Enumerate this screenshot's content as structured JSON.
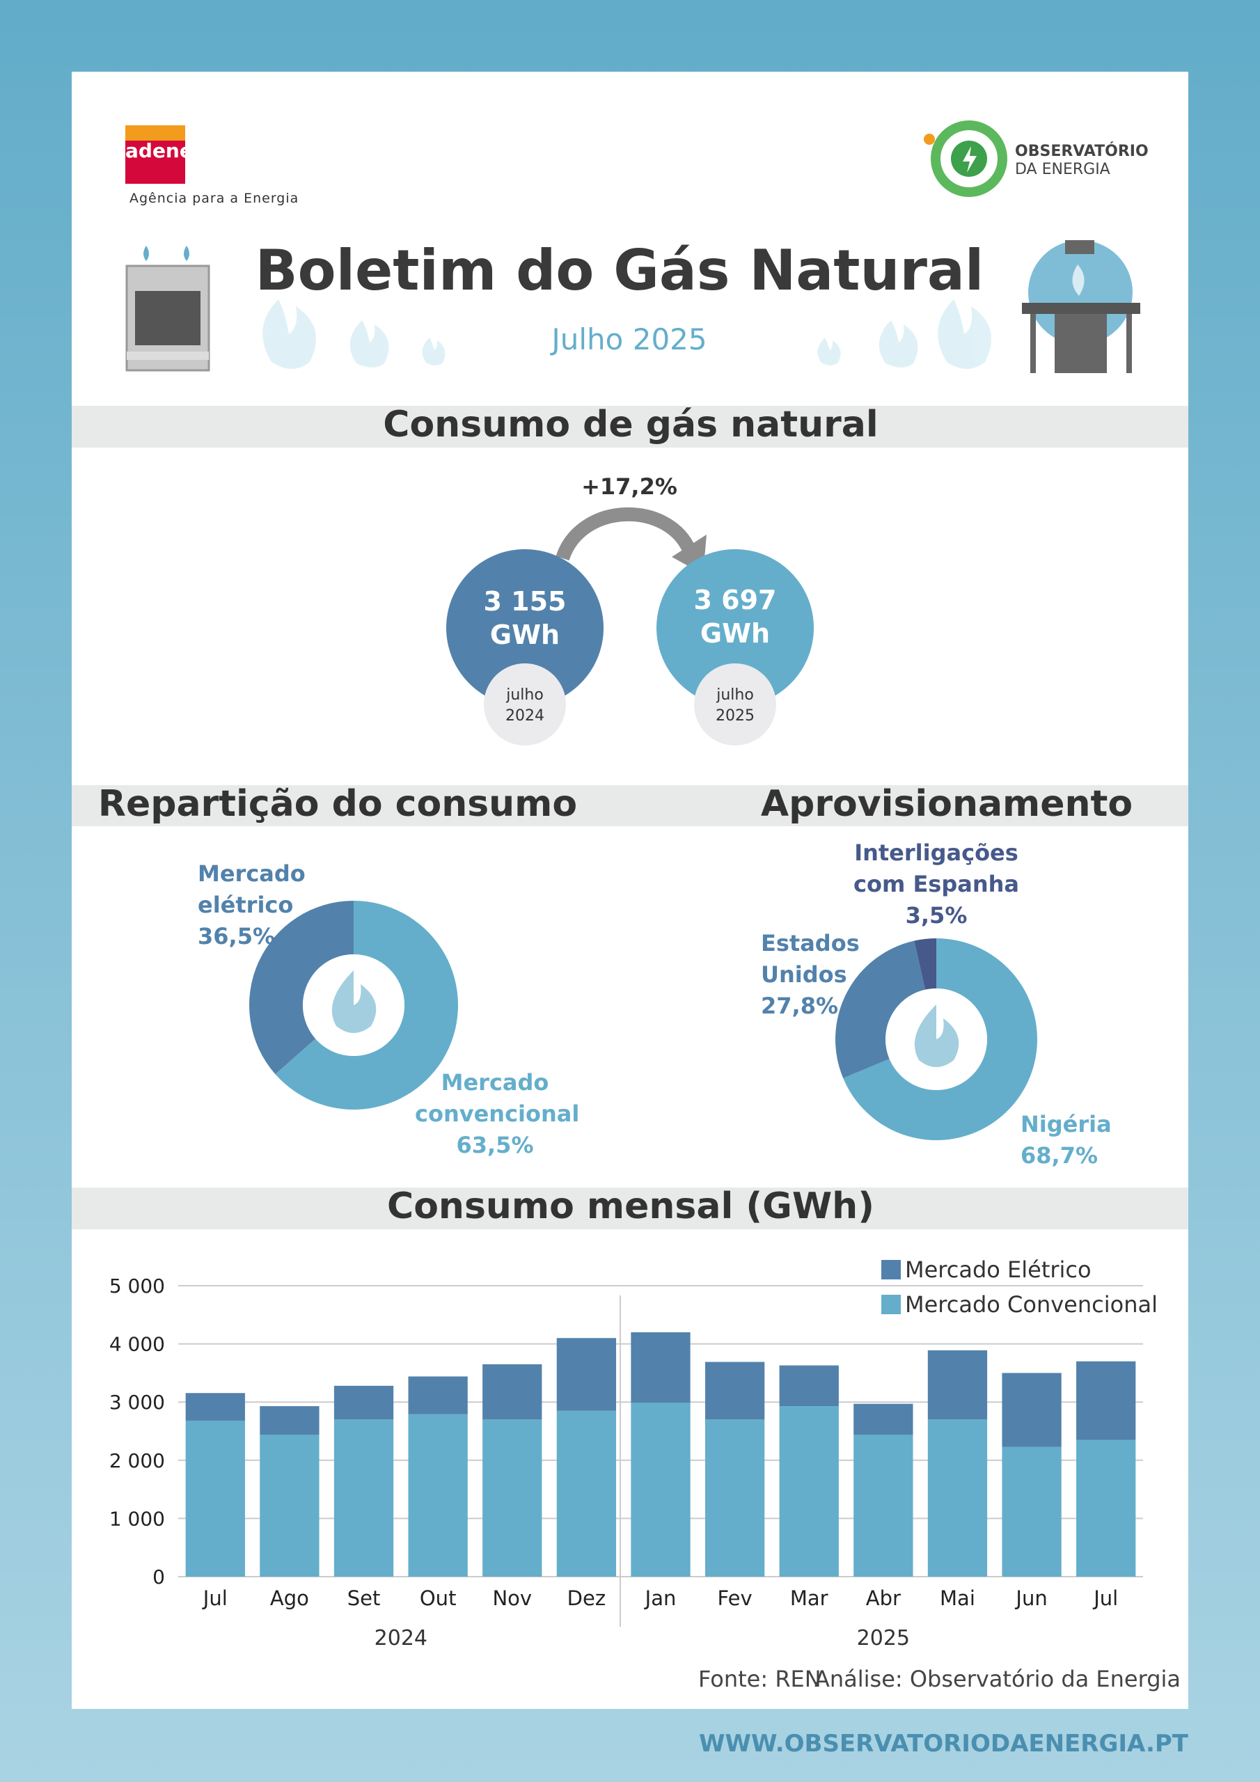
{
  "header": {
    "org": "adene",
    "org_tagline": "Agência para a Energia",
    "partner_line1": "OBSERVATÓRIO",
    "partner_line2": "DA ENERGIA",
    "title": "Boletim do Gás Natural",
    "subtitle": "Julho 2025"
  },
  "comparison": {
    "heading": "Consumo de gás natural",
    "change": "+17,2%",
    "items": [
      {
        "value": "3 155 GWh",
        "period": "julho 2024"
      },
      {
        "value": "3 697 GWh",
        "period": "julho 2025"
      }
    ]
  },
  "sections": {
    "breakdown": "Repartição do consumo",
    "supply": "Aprovisionamento",
    "monthly": "Consumo mensal (GWh)"
  },
  "chart_data": [
    {
      "type": "donut",
      "categories": [
        "Mercado convencional",
        "Mercado elétrico"
      ],
      "values": [
        63.5,
        36.5
      ],
      "value_labels": [
        "63,5%",
        "36,5%"
      ],
      "colors": [
        "#64aecb",
        "#5282ab"
      ]
    },
    {
      "type": "donut",
      "categories": [
        "Nigéria",
        "Estados Unidos",
        "Interligações com Espanha"
      ],
      "values": [
        68.7,
        27.8,
        3.5
      ],
      "value_labels": [
        "68,7%",
        "27,8%",
        "3,5%"
      ],
      "colors": [
        "#64aecb",
        "#5282ab",
        "#46598a"
      ]
    },
    {
      "type": "bar",
      "stacked": true,
      "categories": [
        "Jul",
        "Ago",
        "Set",
        "Out",
        "Nov",
        "Dez",
        "Jan",
        "Fev",
        "Mar",
        "Abr",
        "Mai",
        "Jun",
        "Jul"
      ],
      "groups": [
        "2024",
        "2025"
      ],
      "series": [
        {
          "name": "Mercado Elétrico",
          "color": "#5282ab",
          "values": [
            475,
            490,
            580,
            650,
            950,
            1250,
            1210,
            990,
            700,
            530,
            1190,
            1270,
            1350
          ]
        },
        {
          "name": "Mercado Convencional",
          "color": "#64aecb",
          "values": [
            2680,
            2440,
            2700,
            2790,
            2700,
            2850,
            2990,
            2700,
            2930,
            2440,
            2700,
            2230,
            2350
          ]
        }
      ],
      "ylim": [
        0,
        5000
      ],
      "yticks": [
        0,
        {
          "value": 1000,
          "label": "1 000"
        },
        {
          "value": 2000,
          "label": "2 000"
        },
        {
          "value": 3000,
          "label": "3 000"
        },
        {
          "value": 4000,
          "label": "4 000"
        },
        {
          "value": 5000,
          "label": "5 000"
        }
      ],
      "grid": true,
      "legend": "upper right"
    }
  ],
  "footer": {
    "source": "Fonte: REN",
    "analysis": "Análise: Observatório da Energia",
    "url": "WWW.OBSERVATORIODAENERGIA.PT"
  }
}
